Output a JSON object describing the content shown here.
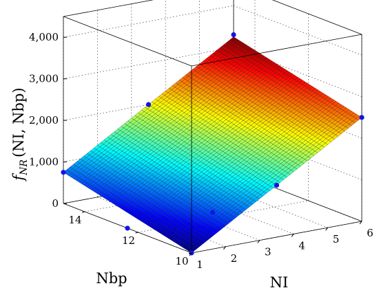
{
  "chart_data": {
    "type": "surface",
    "zlabel": {
      "f": "f",
      "sub": "NR",
      "args": "(NI, Nbp)"
    },
    "xlabel": "NI",
    "ylabel": "Nbp",
    "x_ticks": [
      "1",
      "2",
      "3",
      "4",
      "5",
      "6"
    ],
    "y_ticks": [
      "10",
      "12",
      "14"
    ],
    "z_ticks": [
      "0",
      "1,000",
      "2,000",
      "3,000",
      "4,000"
    ],
    "xlim": [
      1,
      6
    ],
    "ylim": [
      10,
      14.8
    ],
    "zlim": [
      0,
      4500
    ],
    "grid": true,
    "colormap": "jet",
    "surface": {
      "formula": "z = a + b*NI + c*Nbp",
      "corners": [
        {
          "NI": 1,
          "Nbp": 10,
          "z": 0
        },
        {
          "NI": 6,
          "Nbp": 10,
          "z": 2500
        },
        {
          "NI": 1,
          "Nbp": 14.8,
          "z": 750
        },
        {
          "NI": 6,
          "Nbp": 14.8,
          "z": 3250
        }
      ]
    },
    "points": [
      {
        "NI": 1,
        "Nbp": 10,
        "z": 0
      },
      {
        "NI": 1,
        "Nbp": 14.8,
        "z": 750
      },
      {
        "NI": 6,
        "Nbp": 10,
        "z": 2500
      },
      {
        "NI": 6,
        "Nbp": 14.8,
        "z": 3300
      },
      {
        "NI": 3.5,
        "Nbp": 10,
        "z": 1250
      },
      {
        "NI": 3.5,
        "Nbp": 14.8,
        "z": 2000
      },
      {
        "NI": 3.5,
        "Nbp": 12.4,
        "z": 0
      },
      {
        "NI": 1,
        "Nbp": 12.4,
        "z": 0
      }
    ],
    "point_color": "#1414e6"
  }
}
